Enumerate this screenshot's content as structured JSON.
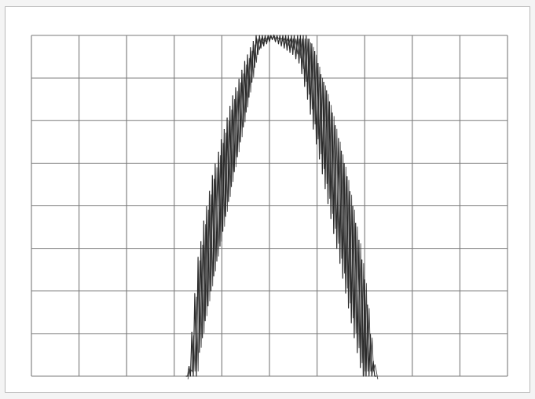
{
  "chart_data": {
    "type": "line",
    "title": "",
    "xlabel": "",
    "ylabel": "",
    "grid": true,
    "grid_divisions": {
      "x": 10,
      "y": 8
    },
    "xlim": [
      0,
      10
    ],
    "ylim": [
      0,
      8
    ],
    "series": [
      {
        "x": [
          3.25,
          3.31,
          3.37,
          3.43,
          3.5,
          3.56,
          3.62,
          3.68,
          3.74,
          3.8,
          3.86,
          3.93,
          3.99,
          4.05,
          4.11,
          4.17,
          4.23,
          4.29,
          4.36,
          4.42,
          4.48,
          4.54,
          4.6,
          4.66,
          4.72,
          4.79,
          4.85,
          4.91,
          4.97,
          5.03,
          5.09,
          5.16,
          5.22,
          5.28,
          5.34,
          5.4,
          5.46,
          5.52,
          5.59,
          5.65,
          5.71,
          5.77,
          5.83,
          5.89,
          5.95,
          6.02,
          6.08,
          6.14,
          6.2,
          6.26,
          6.32,
          6.38,
          6.45,
          6.51,
          6.57,
          6.63,
          6.69,
          6.75,
          6.81,
          6.88,
          6.94,
          7.0,
          7.06,
          7.12,
          7.18,
          7.24
        ],
        "y": [
          0.0,
          0.23,
          1.03,
          1.94,
          2.79,
          3.16,
          3.64,
          3.98,
          4.34,
          4.71,
          4.98,
          5.26,
          5.55,
          5.79,
          6.06,
          6.33,
          6.58,
          6.77,
          6.97,
          7.18,
          7.39,
          7.54,
          7.71,
          7.86,
          8.0,
          8.0,
          8.0,
          8.0,
          8.0,
          8.0,
          8.0,
          8.0,
          8.0,
          8.0,
          8.0,
          8.0,
          8.0,
          8.0,
          8.0,
          8.0,
          8.0,
          8.0,
          7.91,
          7.8,
          7.62,
          7.34,
          7.08,
          6.9,
          6.7,
          6.44,
          6.18,
          5.88,
          5.58,
          5.28,
          4.99,
          4.68,
          4.33,
          3.98,
          3.59,
          3.19,
          2.73,
          2.26,
          1.67,
          0.98,
          0.35,
          0.0
        ],
        "troughs": [
          0.0,
          0.0,
          0.0,
          0.0,
          0.56,
          0.9,
          1.3,
          1.65,
          2.0,
          2.35,
          2.7,
          3.05,
          3.4,
          3.75,
          4.1,
          4.45,
          4.8,
          5.15,
          5.5,
          5.85,
          6.2,
          6.55,
          6.9,
          7.25,
          7.55,
          7.7,
          7.75,
          7.8,
          7.85,
          7.9,
          7.85,
          7.8,
          7.75,
          7.7,
          7.65,
          7.6,
          7.55,
          7.45,
          7.35,
          7.1,
          6.8,
          6.5,
          6.15,
          5.8,
          5.45,
          5.1,
          4.75,
          4.4,
          4.05,
          3.7,
          3.35,
          3.0,
          2.65,
          2.3,
          1.95,
          1.6,
          1.25,
          0.9,
          0.55,
          0.2,
          0.0,
          0.0,
          0.0,
          0.0,
          0.0,
          0.0
        ]
      }
    ]
  },
  "colors": {
    "background": "#f4f4f4",
    "panel": "#ffffff",
    "grid": "#7a7a7a",
    "trace": "#2a2a2a"
  }
}
